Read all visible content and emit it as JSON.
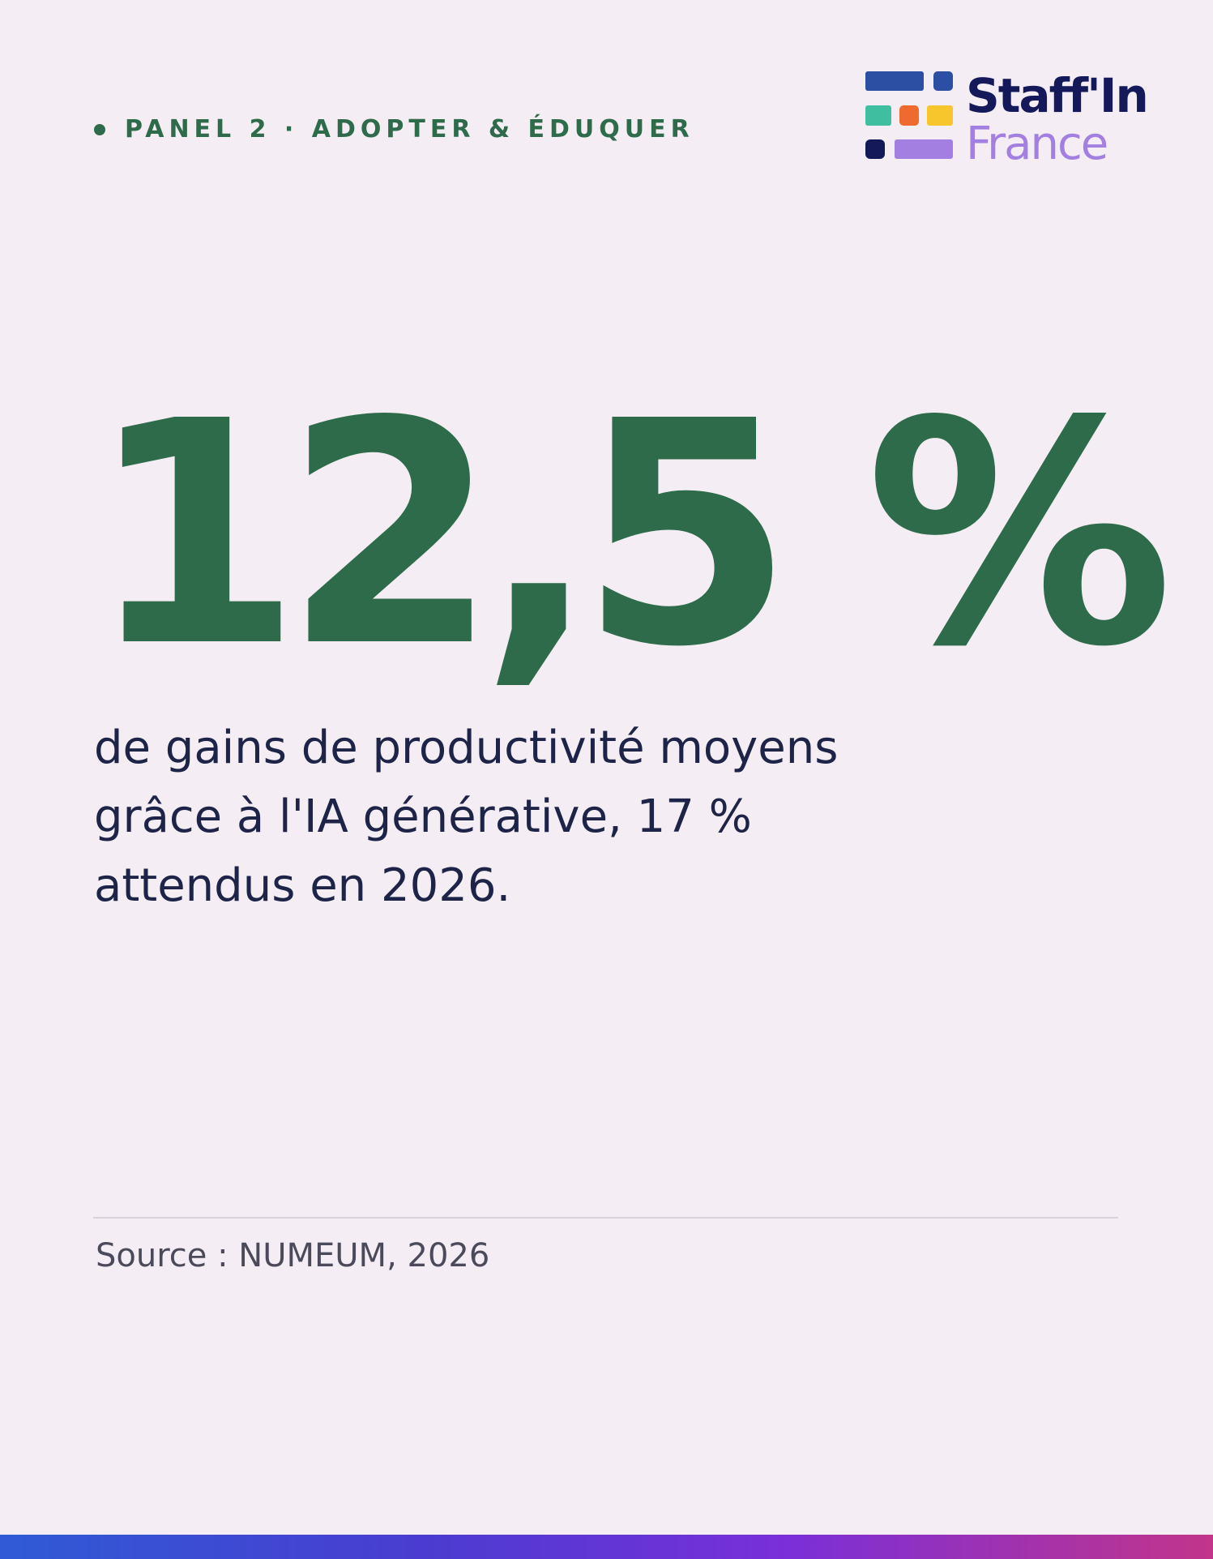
{
  "header": {
    "panel": "PANEL 2 · ADOPTER & ÉDUQUER"
  },
  "logo": {
    "line1": "Staff'In",
    "line2": "France"
  },
  "stat": {
    "value": "12,5 %",
    "description": [
      "de gains de productivité moyens",
      "grâce à l'IA générative, 17 %",
      "attendus en 2026."
    ]
  },
  "footer": {
    "source": "Source : NUMEUM, 2026"
  }
}
